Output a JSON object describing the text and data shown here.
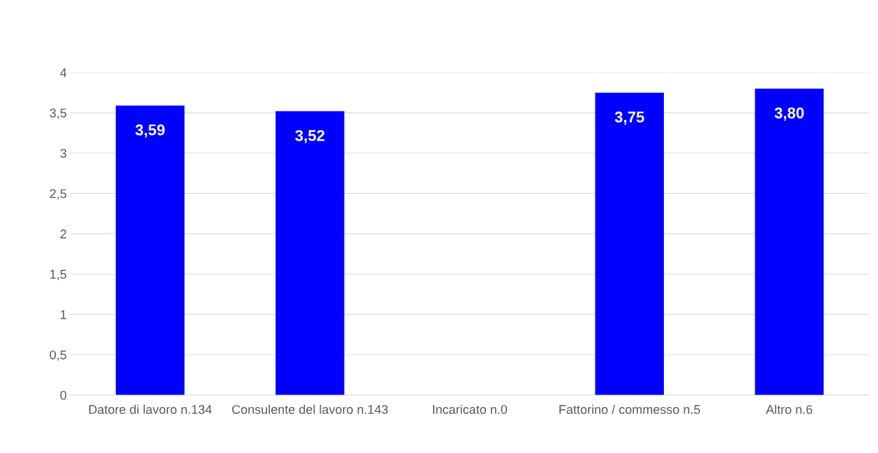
{
  "chart_data": {
    "type": "bar",
    "categories": [
      "Datore di lavoro n.134",
      "Consulente del lavoro n.143",
      "Incaricato n.0",
      "Fattorino / commesso n.5",
      "Altro n.6"
    ],
    "values": [
      3.59,
      3.52,
      null,
      3.75,
      3.8
    ],
    "value_labels": [
      "3,59",
      "3,52",
      null,
      "3,75",
      "3,80"
    ],
    "color": "#0000ff",
    "ylim": [
      0,
      4
    ],
    "yticks": [
      0,
      {
        "value": 0.5,
        "label": "0,5"
      },
      1,
      {
        "value": 1.5,
        "label": "1,5"
      },
      2,
      {
        "value": 2.5,
        "label": "2,5"
      },
      3,
      {
        "value": 3.5,
        "label": "3,5"
      },
      4
    ],
    "grid": "y",
    "legend": false
  }
}
